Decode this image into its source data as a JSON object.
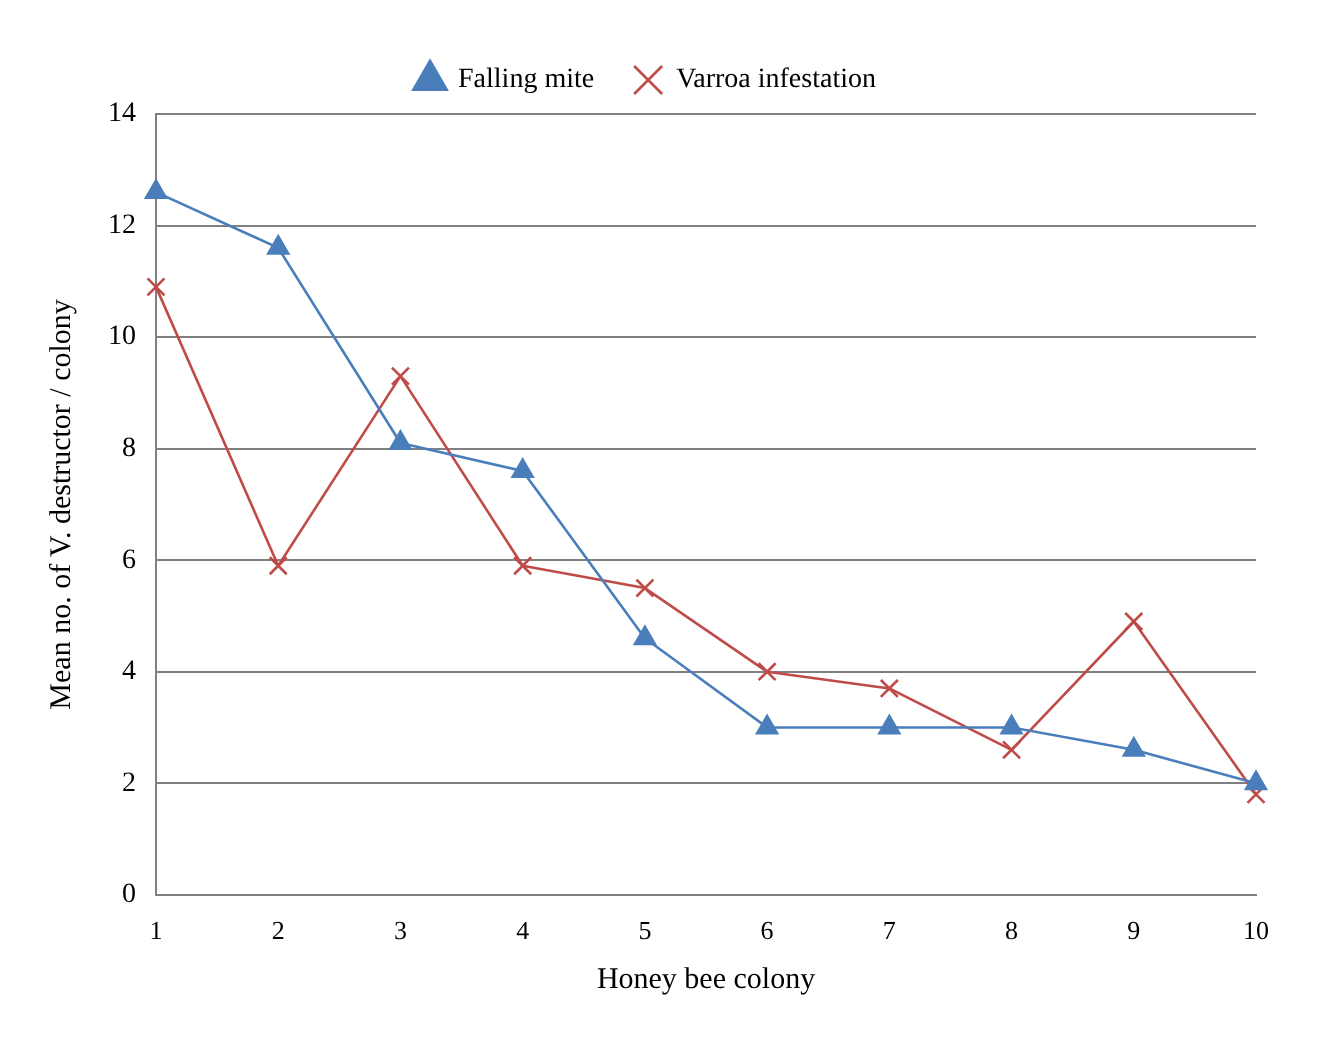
{
  "chart_data": {
    "type": "line",
    "xlabel": "Honey bee colony",
    "ylabel": "Mean no. of V. destructor / colony",
    "categories": [
      "1",
      "2",
      "3",
      "4",
      "5",
      "6",
      "7",
      "8",
      "9",
      "10"
    ],
    "series": [
      {
        "name": "Falling mite",
        "color": "#4a7ebb",
        "marker": "triangle",
        "values": [
          12.6,
          11.6,
          8.1,
          7.6,
          4.6,
          3.0,
          3.0,
          3.0,
          2.6,
          2.0
        ]
      },
      {
        "name": "Varroa infestation",
        "color": "#be4b48",
        "marker": "cross",
        "values": [
          10.9,
          5.9,
          9.3,
          5.9,
          5.5,
          4.0,
          3.7,
          2.6,
          4.9,
          1.8
        ]
      }
    ],
    "ylim": [
      0,
      14
    ],
    "yticks": [
      0,
      2,
      4,
      6,
      8,
      10,
      12,
      14
    ],
    "grid": "y",
    "legend": "top",
    "line_style": "solid"
  }
}
